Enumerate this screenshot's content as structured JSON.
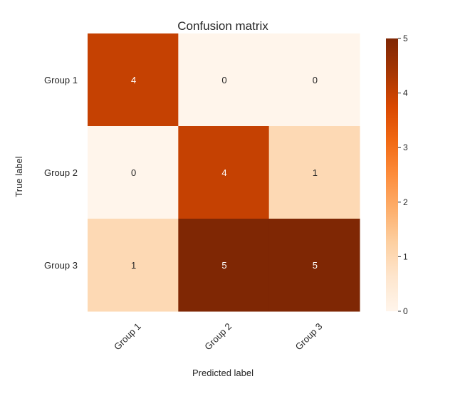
{
  "chart_data": {
    "type": "heatmap",
    "title": "Confusion matrix",
    "xlabel": "Predicted label",
    "ylabel": "True label",
    "x_categories": [
      "Group 1",
      "Group 2",
      "Group 3"
    ],
    "y_categories": [
      "Group 1",
      "Group 2",
      "Group 3"
    ],
    "values": [
      [
        4,
        0,
        0
      ],
      [
        0,
        4,
        1
      ],
      [
        1,
        5,
        5
      ]
    ],
    "colormap": "Oranges",
    "color_range": [
      0,
      5
    ],
    "colorbar_ticks": [
      0,
      1,
      2,
      3,
      4,
      5
    ],
    "colors": {
      "low": "#fff5eb",
      "high": "#7f2704",
      "text_dark": "#262626",
      "text_light": "#ffffff"
    },
    "grid": false,
    "colorbar_position": "right"
  }
}
